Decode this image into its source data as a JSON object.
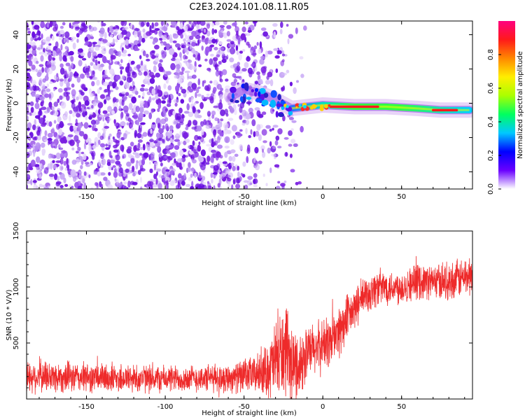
{
  "title": "C2E3.2024.101.08.11.R05",
  "colors": {
    "snr_line": "#ee2a2a",
    "spectrogram_noise": "#7a1fe0",
    "signal_peak": "#ff1a1a",
    "colorbar_stops": [
      "#ffffff",
      "#6a00ff",
      "#0000ff",
      "#00c8ff",
      "#00ff60",
      "#aaff00",
      "#ffee00",
      "#ff8800",
      "#ff1a1a",
      "#ff0080"
    ]
  },
  "chart_data": [
    {
      "type": "heatmap",
      "name": "spectrogram",
      "xlabel": "Height of straight line (km)",
      "ylabel": "Frequency (Hz)",
      "xlim": [
        -188,
        95
      ],
      "ylim": [
        -50,
        48
      ],
      "xticks": [
        -150,
        -100,
        -50,
        0,
        50
      ],
      "yticks": [
        -40,
        -20,
        0,
        20,
        40
      ],
      "colorbar": {
        "label": "Normalized spectral amplitude",
        "range": [
          0.0,
          1.0
        ],
        "ticks": [
          0.0,
          0.2,
          0.4,
          0.6,
          0.8
        ]
      },
      "noise_region_x": [
        -188,
        -40
      ],
      "signal_track": [
        {
          "x": -58,
          "y": 4
        },
        {
          "x": -50,
          "y": 8
        },
        {
          "x": -40,
          "y": 6
        },
        {
          "x": -30,
          "y": 2
        },
        {
          "x": -20,
          "y": -3
        },
        {
          "x": -10,
          "y": -2
        },
        {
          "x": 0,
          "y": -1
        },
        {
          "x": 20,
          "y": -2
        },
        {
          "x": 40,
          "y": -2
        },
        {
          "x": 60,
          "y": -3
        },
        {
          "x": 75,
          "y": -4
        },
        {
          "x": 93,
          "y": -4
        }
      ]
    },
    {
      "type": "line",
      "name": "snr",
      "xlabel": "Height of straight line (km)",
      "ylabel": "SNR (10 * V/V)",
      "xlim": [
        -188,
        95
      ],
      "ylim": [
        0,
        1500
      ],
      "xticks": [
        -150,
        -100,
        -50,
        0,
        50
      ],
      "yticks": [
        500,
        1000,
        1500
      ],
      "series": [
        {
          "x": [
            -188,
            -175,
            -150,
            -125,
            -100,
            -75,
            -60,
            -50,
            -40,
            -35,
            -30,
            -25,
            -20,
            -15,
            -10,
            -5,
            0,
            5,
            10,
            15,
            20,
            25,
            30,
            35,
            40,
            50,
            60,
            70,
            80,
            93
          ],
          "values": [
            200,
            200,
            190,
            185,
            180,
            185,
            190,
            200,
            230,
            260,
            330,
            420,
            300,
            300,
            400,
            450,
            480,
            520,
            600,
            700,
            800,
            900,
            950,
            1000,
            1000,
            1000,
            1050,
            1050,
            1050,
            1100
          ],
          "spread": [
            120,
            120,
            110,
            110,
            100,
            100,
            110,
            120,
            150,
            200,
            300,
            350,
            300,
            250,
            200,
            200,
            200,
            200,
            200,
            180,
            150,
            150,
            150,
            140,
            130,
            130,
            130,
            130,
            140,
            150
          ]
        }
      ]
    }
  ]
}
